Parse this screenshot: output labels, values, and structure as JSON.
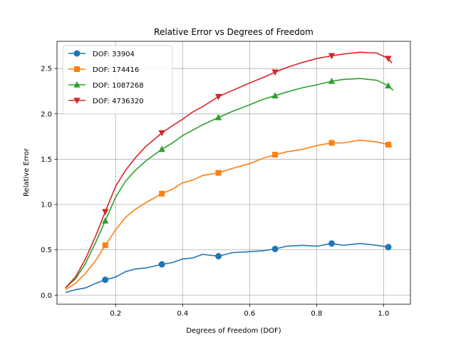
{
  "chart_data": {
    "type": "line",
    "title": "Relative Error vs Degrees of Freedom",
    "xlabel": "Degrees of Freedom (DOF)",
    "ylabel": "Relative Error",
    "xlim": [
      0.025,
      1.08
    ],
    "ylim": [
      -0.1,
      2.8
    ],
    "xticks": [
      0.2,
      0.4,
      0.6,
      0.8,
      1.0
    ],
    "xtick_labels": [
      "0.2",
      "0.4",
      "0.6",
      "0.8",
      "1.0"
    ],
    "yticks": [
      0.0,
      0.5,
      1.0,
      1.5,
      2.0,
      2.5
    ],
    "ytick_labels": [
      "0.0",
      "0.5",
      "1.0",
      "1.5",
      "2.0",
      "2.5"
    ],
    "grid": true,
    "legend_position": "top-left",
    "marker_x": [
      0.169,
      0.338,
      0.507,
      0.676,
      0.845,
      1.014
    ],
    "series": [
      {
        "name": "DOF: 33904",
        "color": "#1f77b4",
        "marker": "circle",
        "x": [
          0.05,
          0.08,
          0.11,
          0.14,
          0.169,
          0.2,
          0.23,
          0.26,
          0.29,
          0.338,
          0.37,
          0.4,
          0.43,
          0.46,
          0.507,
          0.55,
          0.6,
          0.64,
          0.676,
          0.71,
          0.76,
          0.8,
          0.845,
          0.88,
          0.93,
          0.98,
          1.014,
          1.02
        ],
        "y": [
          0.03,
          0.06,
          0.08,
          0.13,
          0.17,
          0.2,
          0.26,
          0.29,
          0.3,
          0.34,
          0.36,
          0.4,
          0.41,
          0.45,
          0.43,
          0.47,
          0.48,
          0.49,
          0.51,
          0.54,
          0.55,
          0.54,
          0.57,
          0.55,
          0.57,
          0.55,
          0.53,
          0.52
        ]
      },
      {
        "name": "DOF: 174416",
        "color": "#ff7f0e",
        "marker": "square",
        "x": [
          0.05,
          0.08,
          0.11,
          0.14,
          0.169,
          0.2,
          0.23,
          0.26,
          0.29,
          0.338,
          0.37,
          0.4,
          0.43,
          0.46,
          0.507,
          0.55,
          0.6,
          0.64,
          0.676,
          0.71,
          0.76,
          0.8,
          0.845,
          0.88,
          0.93,
          0.98,
          1.014,
          1.025
        ],
        "y": [
          0.06,
          0.13,
          0.24,
          0.38,
          0.55,
          0.72,
          0.86,
          0.95,
          1.02,
          1.12,
          1.17,
          1.24,
          1.27,
          1.32,
          1.35,
          1.4,
          1.45,
          1.51,
          1.55,
          1.58,
          1.61,
          1.65,
          1.68,
          1.68,
          1.71,
          1.69,
          1.66,
          1.64
        ]
      },
      {
        "name": "DOF: 1087268",
        "color": "#2ca02c",
        "marker": "triangle-up",
        "x": [
          0.05,
          0.08,
          0.11,
          0.14,
          0.169,
          0.2,
          0.23,
          0.26,
          0.29,
          0.338,
          0.37,
          0.4,
          0.43,
          0.46,
          0.507,
          0.55,
          0.6,
          0.64,
          0.676,
          0.71,
          0.76,
          0.8,
          0.845,
          0.88,
          0.93,
          0.98,
          1.014,
          1.028
        ],
        "y": [
          0.08,
          0.18,
          0.35,
          0.58,
          0.82,
          1.08,
          1.26,
          1.38,
          1.48,
          1.61,
          1.68,
          1.76,
          1.82,
          1.88,
          1.96,
          2.03,
          2.1,
          2.16,
          2.2,
          2.24,
          2.29,
          2.32,
          2.36,
          2.38,
          2.39,
          2.37,
          2.31,
          2.26
        ]
      },
      {
        "name": "DOF: 4736320",
        "color": "#d62728",
        "marker": "triangle-down",
        "x": [
          0.05,
          0.08,
          0.11,
          0.14,
          0.169,
          0.2,
          0.23,
          0.26,
          0.29,
          0.338,
          0.37,
          0.4,
          0.43,
          0.46,
          0.507,
          0.55,
          0.6,
          0.64,
          0.676,
          0.71,
          0.76,
          0.8,
          0.845,
          0.88,
          0.93,
          0.98,
          1.014,
          1.025
        ],
        "y": [
          0.08,
          0.2,
          0.4,
          0.65,
          0.92,
          1.2,
          1.38,
          1.52,
          1.64,
          1.79,
          1.87,
          1.94,
          2.02,
          2.08,
          2.19,
          2.26,
          2.34,
          2.4,
          2.46,
          2.51,
          2.57,
          2.61,
          2.64,
          2.66,
          2.68,
          2.67,
          2.61,
          2.56
        ]
      }
    ]
  }
}
